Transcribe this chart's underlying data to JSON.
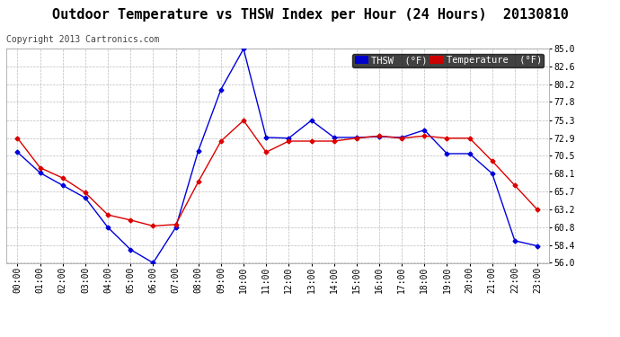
{
  "title": "Outdoor Temperature vs THSW Index per Hour (24 Hours)  20130810",
  "copyright": "Copyright 2013 Cartronics.com",
  "background_color": "#ffffff",
  "plot_bg_color": "#ffffff",
  "grid_color": "#bbbbbb",
  "hours": [
    "00:00",
    "01:00",
    "02:00",
    "03:00",
    "04:00",
    "05:00",
    "06:00",
    "07:00",
    "08:00",
    "09:00",
    "10:00",
    "11:00",
    "12:00",
    "13:00",
    "14:00",
    "15:00",
    "16:00",
    "17:00",
    "18:00",
    "19:00",
    "20:00",
    "21:00",
    "22:00",
    "23:00"
  ],
  "thsw": [
    71.0,
    68.2,
    66.5,
    64.8,
    60.8,
    57.8,
    56.0,
    60.8,
    71.2,
    79.5,
    85.0,
    73.0,
    72.9,
    75.3,
    73.0,
    73.0,
    73.1,
    73.0,
    74.0,
    70.8,
    70.8,
    68.1,
    59.0,
    58.3
  ],
  "temperature": [
    72.9,
    68.9,
    67.5,
    65.5,
    62.5,
    61.8,
    61.0,
    61.2,
    67.0,
    72.5,
    75.3,
    71.0,
    72.5,
    72.5,
    72.5,
    72.9,
    73.2,
    72.9,
    73.2,
    72.9,
    72.9,
    69.8,
    66.5,
    63.2
  ],
  "thsw_color": "#0000dd",
  "temp_color": "#dd0000",
  "ylim_min": 56.0,
  "ylim_max": 85.0,
  "yticks": [
    56.0,
    58.4,
    60.8,
    63.2,
    65.7,
    68.1,
    70.5,
    72.9,
    75.3,
    77.8,
    80.2,
    82.6,
    85.0
  ],
  "ytick_labels": [
    "56.0",
    "58.4",
    "60.8",
    "63.2",
    "65.7",
    "68.1",
    "70.5",
    "72.9",
    "75.3",
    "77.8",
    "80.2",
    "82.6",
    "85.0"
  ],
  "legend_thsw_bg": "#0000cc",
  "legend_temp_bg": "#cc0000",
  "legend_thsw_label": "THSW  (°F)",
  "legend_temp_label": "Temperature  (°F)",
  "title_fontsize": 11,
  "copyright_fontsize": 7,
  "tick_fontsize": 7,
  "legend_fontsize": 7.5,
  "marker": "D",
  "markersize": 2.5,
  "linewidth": 1.0
}
